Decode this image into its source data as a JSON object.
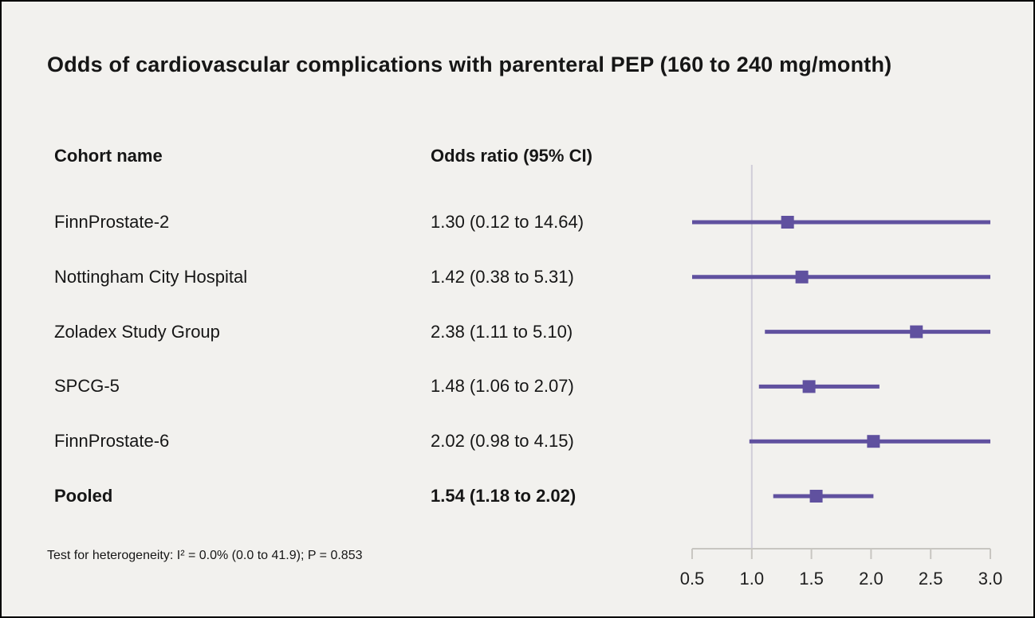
{
  "chart_data": {
    "type": "forest",
    "title": "Odds of cardiovascular complications with parenteral PEP (160 to 240 mg/month)",
    "columns": {
      "cohort": "Cohort name",
      "or_ci": "Odds ratio (95% CI)"
    },
    "rows": [
      {
        "cohort": "FinnProstate-2",
        "label": "1.30 (0.12 to 14.64)",
        "or": 1.3,
        "lo": 0.12,
        "hi": 14.64,
        "pooled": false
      },
      {
        "cohort": "Nottingham City Hospital",
        "label": "1.42 (0.38 to 5.31)",
        "or": 1.42,
        "lo": 0.38,
        "hi": 5.31,
        "pooled": false
      },
      {
        "cohort": "Zoladex Study Group",
        "label": "2.38 (1.11 to 5.10)",
        "or": 2.38,
        "lo": 1.11,
        "hi": 5.1,
        "pooled": false
      },
      {
        "cohort": "SPCG-5",
        "label": "1.48 (1.06 to 2.07)",
        "or": 1.48,
        "lo": 1.06,
        "hi": 2.07,
        "pooled": false
      },
      {
        "cohort": "FinnProstate-6",
        "label": "2.02 (0.98 to 4.15)",
        "or": 2.02,
        "lo": 0.98,
        "hi": 4.15,
        "pooled": false
      },
      {
        "cohort": "Pooled",
        "label": "1.54 (1.18 to 2.02)",
        "or": 1.54,
        "lo": 1.18,
        "hi": 2.02,
        "pooled": true
      }
    ],
    "x_axis": {
      "ticks": [
        "0.5",
        "1.0",
        "1.5",
        "2.0",
        "2.5",
        "3.0"
      ],
      "values": [
        0.5,
        1.0,
        1.5,
        2.0,
        2.5,
        3.0
      ],
      "min": 0.5,
      "max": 3.0,
      "reference": 1.0
    },
    "footnote": "Test for heterogeneity: I² = 0.0% (0.0 to 41.9); P = 0.853",
    "colors": {
      "marker": "#60519f",
      "ci_line": "#60519f",
      "reference_line": "#d0cdd8",
      "axis": "#c8c6c1",
      "background": "#f2f1ee"
    }
  }
}
